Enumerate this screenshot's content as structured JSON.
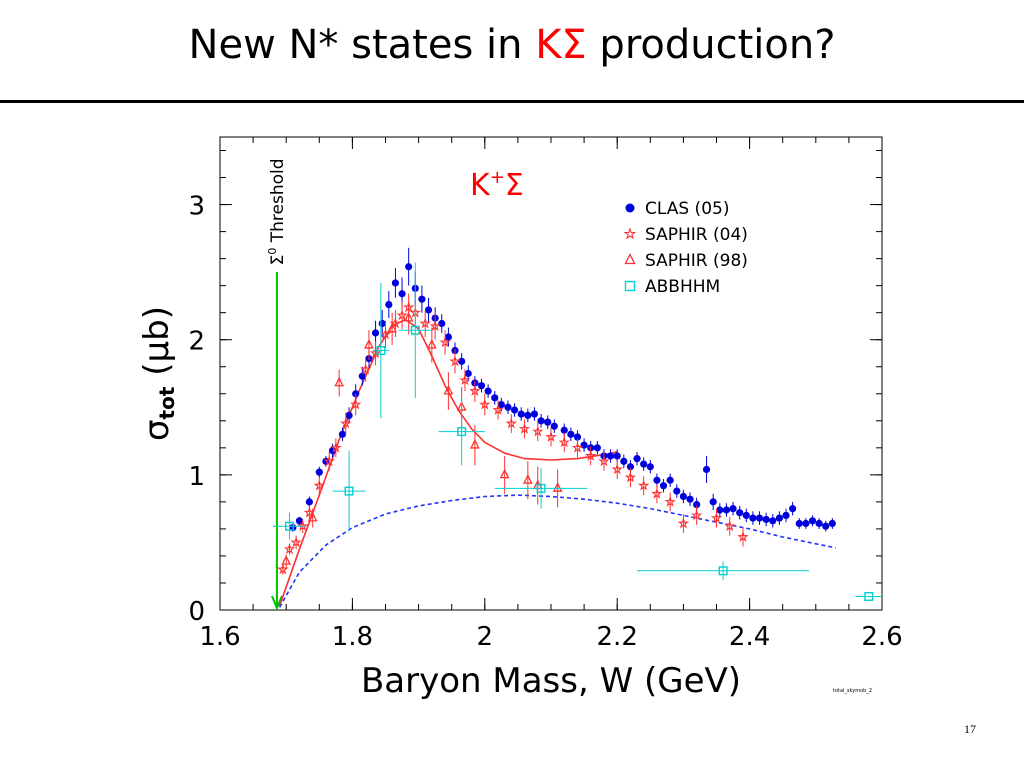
{
  "slide": {
    "title_before": "New N* states in ",
    "title_accent": "KΣ",
    "title_after": " production?",
    "page_number": "17",
    "accent_color": "#ff0000"
  },
  "chart_data": {
    "type": "scatter",
    "xlabel": "Baryon Mass, W (GeV)",
    "ylabel": "σtot (μb)",
    "ylabel_main": "σ",
    "ylabel_sub": "tot",
    "ylabel_unit": " (μb)",
    "xlim": [
      1.6,
      2.6
    ],
    "ylim": [
      0,
      3.5
    ],
    "xticks": [
      1.6,
      1.8,
      2.0,
      2.2,
      2.4,
      2.6
    ],
    "xtick_labels": [
      "1.6",
      "1.8",
      "2",
      "2.2",
      "2.4",
      "2.6"
    ],
    "yticks": [
      0,
      1,
      2,
      3
    ],
    "ytick_labels": [
      "0",
      "1",
      "2",
      "3"
    ],
    "panel_label": "K+Σ",
    "panel_label_base": "K",
    "panel_label_sup": "+",
    "panel_label_after": "Σ",
    "threshold": {
      "x": 1.686,
      "label": "Σ0 Threshold",
      "label_sym": "Σ",
      "label_sup": "0",
      "label_text": " Threshold",
      "color": "#00c000"
    },
    "footnote": "total_skymob_2",
    "legend": {
      "position": "top-right"
    },
    "series": [
      {
        "name": "CLAS (05)",
        "marker": "circle",
        "color": "#0000dd",
        "points": [
          {
            "x": 1.71,
            "y": 0.61,
            "e": 0.03
          },
          {
            "x": 1.72,
            "y": 0.66,
            "e": 0.03
          },
          {
            "x": 1.735,
            "y": 0.8,
            "e": 0.04
          },
          {
            "x": 1.75,
            "y": 1.02,
            "e": 0.04
          },
          {
            "x": 1.76,
            "y": 1.1,
            "e": 0.04
          },
          {
            "x": 1.77,
            "y": 1.18,
            "e": 0.05
          },
          {
            "x": 1.785,
            "y": 1.3,
            "e": 0.05
          },
          {
            "x": 1.795,
            "y": 1.44,
            "e": 0.06
          },
          {
            "x": 1.805,
            "y": 1.6,
            "e": 0.07
          },
          {
            "x": 1.815,
            "y": 1.73,
            "e": 0.07
          },
          {
            "x": 1.825,
            "y": 1.86,
            "e": 0.08
          },
          {
            "x": 1.835,
            "y": 2.05,
            "e": 0.09
          },
          {
            "x": 1.845,
            "y": 2.12,
            "e": 0.1
          },
          {
            "x": 1.855,
            "y": 2.26,
            "e": 0.1
          },
          {
            "x": 1.865,
            "y": 2.42,
            "e": 0.11
          },
          {
            "x": 1.875,
            "y": 2.34,
            "e": 0.12
          },
          {
            "x": 1.885,
            "y": 2.54,
            "e": 0.14
          },
          {
            "x": 1.895,
            "y": 2.38,
            "e": 0.12
          },
          {
            "x": 1.905,
            "y": 2.3,
            "e": 0.1
          },
          {
            "x": 1.915,
            "y": 2.22,
            "e": 0.09
          },
          {
            "x": 1.925,
            "y": 2.16,
            "e": 0.08
          },
          {
            "x": 1.935,
            "y": 2.12,
            "e": 0.07
          },
          {
            "x": 1.945,
            "y": 2.02,
            "e": 0.07
          },
          {
            "x": 1.955,
            "y": 1.92,
            "e": 0.06
          },
          {
            "x": 1.965,
            "y": 1.84,
            "e": 0.06
          },
          {
            "x": 1.975,
            "y": 1.75,
            "e": 0.06
          },
          {
            "x": 1.985,
            "y": 1.68,
            "e": 0.05
          },
          {
            "x": 1.995,
            "y": 1.66,
            "e": 0.05
          },
          {
            "x": 2.005,
            "y": 1.62,
            "e": 0.05
          },
          {
            "x": 2.015,
            "y": 1.57,
            "e": 0.05
          },
          {
            "x": 2.025,
            "y": 1.52,
            "e": 0.05
          },
          {
            "x": 2.035,
            "y": 1.5,
            "e": 0.05
          },
          {
            "x": 2.045,
            "y": 1.48,
            "e": 0.05
          },
          {
            "x": 2.055,
            "y": 1.45,
            "e": 0.05
          },
          {
            "x": 2.065,
            "y": 1.44,
            "e": 0.05
          },
          {
            "x": 2.075,
            "y": 1.45,
            "e": 0.05
          },
          {
            "x": 2.085,
            "y": 1.4,
            "e": 0.05
          },
          {
            "x": 2.095,
            "y": 1.39,
            "e": 0.05
          },
          {
            "x": 2.105,
            "y": 1.36,
            "e": 0.05
          },
          {
            "x": 2.12,
            "y": 1.33,
            "e": 0.05
          },
          {
            "x": 2.13,
            "y": 1.3,
            "e": 0.05
          },
          {
            "x": 2.14,
            "y": 1.28,
            "e": 0.05
          },
          {
            "x": 2.15,
            "y": 1.22,
            "e": 0.05
          },
          {
            "x": 2.16,
            "y": 1.2,
            "e": 0.05
          },
          {
            "x": 2.17,
            "y": 1.2,
            "e": 0.05
          },
          {
            "x": 2.18,
            "y": 1.14,
            "e": 0.05
          },
          {
            "x": 2.19,
            "y": 1.14,
            "e": 0.05
          },
          {
            "x": 2.2,
            "y": 1.14,
            "e": 0.05
          },
          {
            "x": 2.21,
            "y": 1.1,
            "e": 0.05
          },
          {
            "x": 2.22,
            "y": 1.06,
            "e": 0.05
          },
          {
            "x": 2.23,
            "y": 1.12,
            "e": 0.05
          },
          {
            "x": 2.24,
            "y": 1.08,
            "e": 0.05
          },
          {
            "x": 2.25,
            "y": 1.06,
            "e": 0.05
          },
          {
            "x": 2.26,
            "y": 0.96,
            "e": 0.05
          },
          {
            "x": 2.27,
            "y": 0.92,
            "e": 0.05
          },
          {
            "x": 2.28,
            "y": 0.96,
            "e": 0.05
          },
          {
            "x": 2.29,
            "y": 0.88,
            "e": 0.05
          },
          {
            "x": 2.3,
            "y": 0.84,
            "e": 0.05
          },
          {
            "x": 2.31,
            "y": 0.82,
            "e": 0.05
          },
          {
            "x": 2.32,
            "y": 0.78,
            "e": 0.05
          },
          {
            "x": 2.335,
            "y": 1.04,
            "e": 0.1
          },
          {
            "x": 2.345,
            "y": 0.8,
            "e": 0.06
          },
          {
            "x": 2.355,
            "y": 0.74,
            "e": 0.05
          },
          {
            "x": 2.365,
            "y": 0.74,
            "e": 0.05
          },
          {
            "x": 2.375,
            "y": 0.75,
            "e": 0.05
          },
          {
            "x": 2.385,
            "y": 0.72,
            "e": 0.05
          },
          {
            "x": 2.395,
            "y": 0.7,
            "e": 0.05
          },
          {
            "x": 2.405,
            "y": 0.68,
            "e": 0.05
          },
          {
            "x": 2.415,
            "y": 0.68,
            "e": 0.05
          },
          {
            "x": 2.425,
            "y": 0.67,
            "e": 0.05
          },
          {
            "x": 2.435,
            "y": 0.66,
            "e": 0.05
          },
          {
            "x": 2.445,
            "y": 0.68,
            "e": 0.05
          },
          {
            "x": 2.455,
            "y": 0.7,
            "e": 0.05
          },
          {
            "x": 2.465,
            "y": 0.75,
            "e": 0.05
          },
          {
            "x": 2.475,
            "y": 0.64,
            "e": 0.04
          },
          {
            "x": 2.485,
            "y": 0.64,
            "e": 0.04
          },
          {
            "x": 2.495,
            "y": 0.66,
            "e": 0.04
          },
          {
            "x": 2.505,
            "y": 0.64,
            "e": 0.04
          },
          {
            "x": 2.515,
            "y": 0.62,
            "e": 0.04
          },
          {
            "x": 2.525,
            "y": 0.64,
            "e": 0.04
          }
        ]
      },
      {
        "name": "SAPHIR (04)",
        "marker": "star",
        "color": "#ff3030",
        "points": [
          {
            "x": 1.695,
            "y": 0.3,
            "e": 0.04
          },
          {
            "x": 1.705,
            "y": 0.45,
            "e": 0.04
          },
          {
            "x": 1.715,
            "y": 0.5,
            "e": 0.05
          },
          {
            "x": 1.725,
            "y": 0.62,
            "e": 0.05
          },
          {
            "x": 1.735,
            "y": 0.72,
            "e": 0.05
          },
          {
            "x": 1.75,
            "y": 0.92,
            "e": 0.06
          },
          {
            "x": 1.765,
            "y": 1.1,
            "e": 0.07
          },
          {
            "x": 1.775,
            "y": 1.2,
            "e": 0.07
          },
          {
            "x": 1.79,
            "y": 1.38,
            "e": 0.08
          },
          {
            "x": 1.805,
            "y": 1.52,
            "e": 0.08
          },
          {
            "x": 1.82,
            "y": 1.78,
            "e": 0.09
          },
          {
            "x": 1.835,
            "y": 1.9,
            "e": 0.09
          },
          {
            "x": 1.85,
            "y": 2.04,
            "e": 0.1
          },
          {
            "x": 1.865,
            "y": 2.12,
            "e": 0.1
          },
          {
            "x": 1.875,
            "y": 2.18,
            "e": 0.1
          },
          {
            "x": 1.885,
            "y": 2.24,
            "e": 0.1
          },
          {
            "x": 1.895,
            "y": 2.2,
            "e": 0.1
          },
          {
            "x": 1.91,
            "y": 2.12,
            "e": 0.1
          },
          {
            "x": 1.925,
            "y": 2.1,
            "e": 0.1
          },
          {
            "x": 1.94,
            "y": 1.98,
            "e": 0.09
          },
          {
            "x": 1.955,
            "y": 1.84,
            "e": 0.09
          },
          {
            "x": 1.97,
            "y": 1.7,
            "e": 0.08
          },
          {
            "x": 1.985,
            "y": 1.62,
            "e": 0.08
          },
          {
            "x": 2.0,
            "y": 1.52,
            "e": 0.08
          },
          {
            "x": 2.02,
            "y": 1.48,
            "e": 0.07
          },
          {
            "x": 2.04,
            "y": 1.38,
            "e": 0.07
          },
          {
            "x": 2.06,
            "y": 1.34,
            "e": 0.07
          },
          {
            "x": 2.08,
            "y": 1.32,
            "e": 0.07
          },
          {
            "x": 2.1,
            "y": 1.28,
            "e": 0.07
          },
          {
            "x": 2.12,
            "y": 1.24,
            "e": 0.07
          },
          {
            "x": 2.14,
            "y": 1.2,
            "e": 0.07
          },
          {
            "x": 2.16,
            "y": 1.14,
            "e": 0.07
          },
          {
            "x": 2.18,
            "y": 1.1,
            "e": 0.07
          },
          {
            "x": 2.2,
            "y": 1.04,
            "e": 0.07
          },
          {
            "x": 2.22,
            "y": 0.98,
            "e": 0.07
          },
          {
            "x": 2.24,
            "y": 0.92,
            "e": 0.07
          },
          {
            "x": 2.26,
            "y": 0.86,
            "e": 0.07
          },
          {
            "x": 2.28,
            "y": 0.8,
            "e": 0.07
          },
          {
            "x": 2.3,
            "y": 0.64,
            "e": 0.07
          },
          {
            "x": 2.32,
            "y": 0.7,
            "e": 0.07
          },
          {
            "x": 2.35,
            "y": 0.68,
            "e": 0.07
          },
          {
            "x": 2.37,
            "y": 0.62,
            "e": 0.07
          },
          {
            "x": 2.39,
            "y": 0.54,
            "e": 0.07
          }
        ]
      },
      {
        "name": "SAPHIR (98)",
        "marker": "triangle",
        "color": "#ff3030",
        "points": [
          {
            "x": 1.7,
            "y": 0.36,
            "e": 0.05
          },
          {
            "x": 1.74,
            "y": 0.68,
            "e": 0.07
          },
          {
            "x": 1.78,
            "y": 1.68,
            "e": 0.1
          },
          {
            "x": 1.825,
            "y": 1.96,
            "e": 0.11
          },
          {
            "x": 1.86,
            "y": 2.08,
            "e": 0.12
          },
          {
            "x": 1.885,
            "y": 2.16,
            "e": 0.12
          },
          {
            "x": 1.92,
            "y": 1.96,
            "e": 0.13
          },
          {
            "x": 1.945,
            "y": 1.62,
            "e": 0.14
          },
          {
            "x": 1.965,
            "y": 1.5,
            "e": 0.15
          },
          {
            "x": 1.985,
            "y": 1.22,
            "e": 0.15
          },
          {
            "x": 2.03,
            "y": 1.0,
            "e": 0.14
          },
          {
            "x": 2.065,
            "y": 0.96,
            "e": 0.14
          },
          {
            "x": 2.08,
            "y": 0.92,
            "e": 0.14
          },
          {
            "x": 2.11,
            "y": 0.9,
            "e": 0.14
          }
        ]
      },
      {
        "name": "ABBHHM",
        "marker": "square",
        "color": "#00d0d0",
        "points": [
          {
            "x": 1.705,
            "y": 0.62,
            "ex": 0.025,
            "e": 0.1
          },
          {
            "x": 1.795,
            "y": 0.88,
            "ex": 0.025,
            "e": 0.3
          },
          {
            "x": 1.843,
            "y": 1.92,
            "ex": 0.012,
            "e": 0.5
          },
          {
            "x": 1.895,
            "y": 2.07,
            "ex": 0.025,
            "e": 0.5
          },
          {
            "x": 1.965,
            "y": 1.32,
            "ex": 0.035,
            "e": 0.25
          },
          {
            "x": 2.085,
            "y": 0.9,
            "ex": 0.07,
            "e": 0.15
          },
          {
            "x": 2.36,
            "y": 0.29,
            "ex": 0.13,
            "e": 0.07
          },
          {
            "x": 2.58,
            "y": 0.1,
            "ex": 0.02,
            "e": 0.0
          }
        ]
      }
    ],
    "curves": [
      {
        "style": "solid",
        "color": "#ff3030",
        "x": [
          1.69,
          1.72,
          1.75,
          1.78,
          1.81,
          1.84,
          1.86,
          1.88,
          1.9,
          1.92,
          1.94,
          1.96,
          1.98,
          2.0,
          2.03,
          2.06,
          2.1,
          2.14,
          2.18,
          2.2
        ],
        "y": [
          0.03,
          0.45,
          0.85,
          1.26,
          1.62,
          1.95,
          2.1,
          2.15,
          2.08,
          1.88,
          1.66,
          1.48,
          1.34,
          1.24,
          1.16,
          1.12,
          1.11,
          1.12,
          1.15,
          1.17
        ]
      },
      {
        "style": "dashed",
        "color": "#2233ff",
        "x": [
          1.69,
          1.72,
          1.76,
          1.8,
          1.85,
          1.9,
          1.95,
          2.0,
          2.05,
          2.1,
          2.15,
          2.2,
          2.25,
          2.3,
          2.35,
          2.4,
          2.45,
          2.5,
          2.53
        ],
        "y": [
          0.02,
          0.28,
          0.48,
          0.61,
          0.71,
          0.77,
          0.81,
          0.84,
          0.85,
          0.84,
          0.82,
          0.79,
          0.75,
          0.7,
          0.65,
          0.6,
          0.54,
          0.49,
          0.46
        ]
      }
    ]
  }
}
